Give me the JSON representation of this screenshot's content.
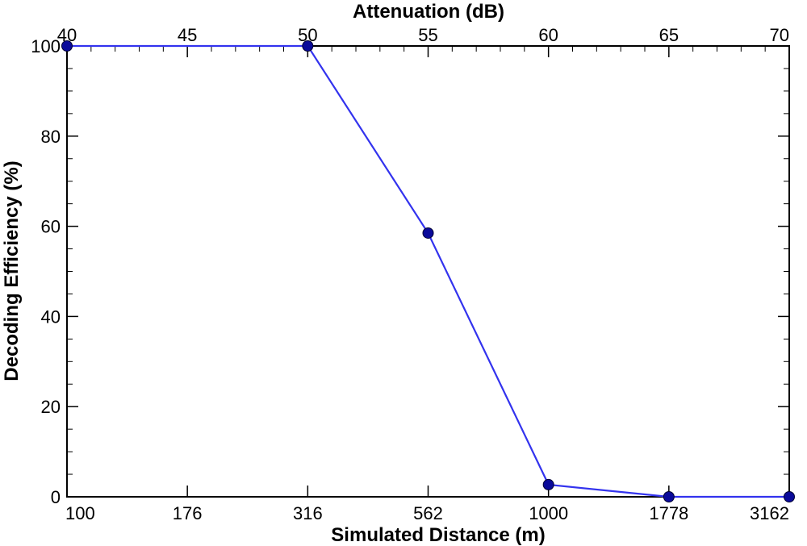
{
  "chart_data": {
    "type": "line",
    "top_axis": {
      "label": "Attenuation (dB)",
      "range": [
        40,
        70
      ],
      "ticks": [
        "40",
        "45",
        "50",
        "55",
        "60",
        "65",
        "70"
      ]
    },
    "bottom_axis": {
      "label": "Simulated Distance (m)",
      "scale": "log",
      "ticks": [
        "100",
        "176",
        "316",
        "562",
        "1000",
        "1778",
        "3162"
      ]
    },
    "y_axis": {
      "label": "Decoding Efficiency (%)",
      "range": [
        0,
        100
      ],
      "ticks": [
        "0",
        "20",
        "40",
        "60",
        "80",
        "100"
      ]
    },
    "grid": false,
    "series": [
      {
        "x": [
          40,
          50,
          55,
          60,
          65,
          70
        ],
        "y": [
          100,
          100,
          58.5,
          2.7,
          0,
          0
        ],
        "line_color": "#3333ee",
        "marker_color": "#0a0a9a"
      }
    ]
  }
}
